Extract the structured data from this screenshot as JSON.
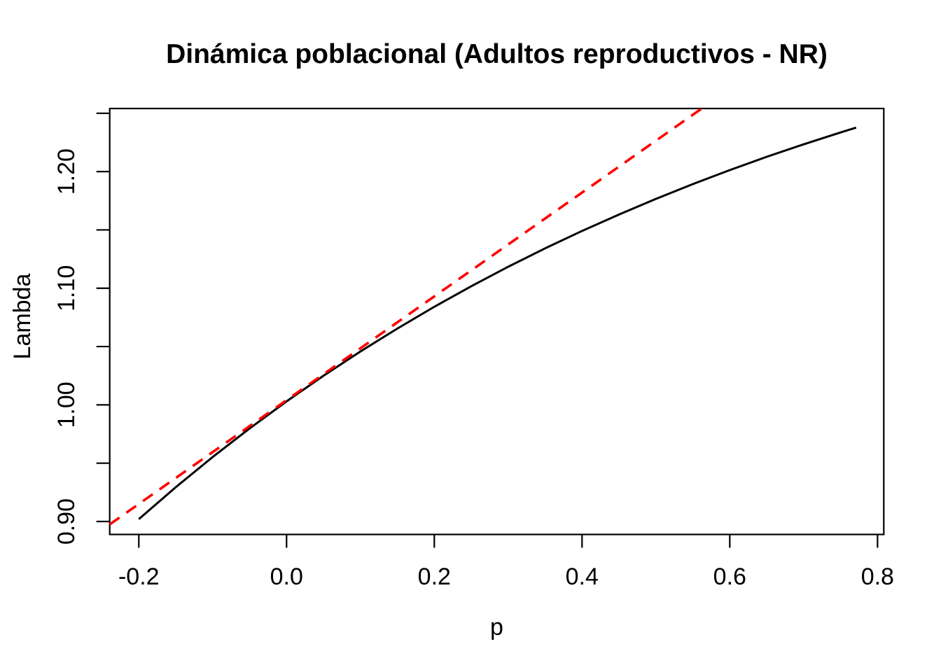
{
  "figure": {
    "title": "Dinámica poblacional (Adultos reproductivos - NR)"
  },
  "colors": {
    "curve": "#000000",
    "tangent": "#FF0000",
    "axis": "#000000",
    "text": "#000000",
    "background": "#FFFFFF"
  },
  "chart_data": {
    "type": "line",
    "title": "Dinámica poblacional (Adultos reproductivos - NR)",
    "xlabel": "p",
    "ylabel": "Lambda",
    "xlim": [
      -0.2394,
      0.8085
    ],
    "ylim": [
      0.8889,
      1.2541
    ],
    "grid": false,
    "legend": "none",
    "x_ticks": {
      "values": [
        -0.2,
        0.0,
        0.2,
        0.4,
        0.6,
        0.8
      ],
      "labels": [
        "-0.2",
        "0.0",
        "0.2",
        "0.4",
        "0.6",
        "0.8"
      ]
    },
    "y_ticks": {
      "values": [
        0.9,
        0.95,
        1.0,
        1.05,
        1.1,
        1.15,
        1.2,
        1.25
      ],
      "labels": [
        "0.90",
        "",
        "1.00",
        "",
        "1.10",
        "",
        "1.20",
        ""
      ]
    },
    "series": [
      {
        "name": "lambda-vs-p-curve",
        "color": "#000000",
        "line_style": "solid",
        "line_width": 3,
        "points": [
          [
            -0.2,
            0.902
          ],
          [
            -0.15,
            0.9294
          ],
          [
            -0.1,
            0.9553
          ],
          [
            -0.05,
            0.9798
          ],
          [
            0.0,
            1.003
          ],
          [
            0.05,
            1.025
          ],
          [
            0.1,
            1.0458
          ],
          [
            0.15,
            1.0654
          ],
          [
            0.2,
            1.0841
          ],
          [
            0.25,
            1.1017
          ],
          [
            0.3,
            1.1184
          ],
          [
            0.35,
            1.1342
          ],
          [
            0.4,
            1.1491
          ],
          [
            0.45,
            1.1632
          ],
          [
            0.5,
            1.1766
          ],
          [
            0.55,
            1.1893
          ],
          [
            0.6,
            1.2013
          ],
          [
            0.65,
            1.2127
          ],
          [
            0.7,
            1.2234
          ],
          [
            0.75,
            1.2336
          ],
          [
            0.771,
            1.2377
          ]
        ]
      },
      {
        "name": "tangent-line",
        "color": "#FF0000",
        "line_style": "dashed",
        "line_width": 3.6,
        "points": [
          [
            -0.2394,
            0.8975
          ],
          [
            0.562,
            1.2541
          ]
        ]
      }
    ]
  }
}
